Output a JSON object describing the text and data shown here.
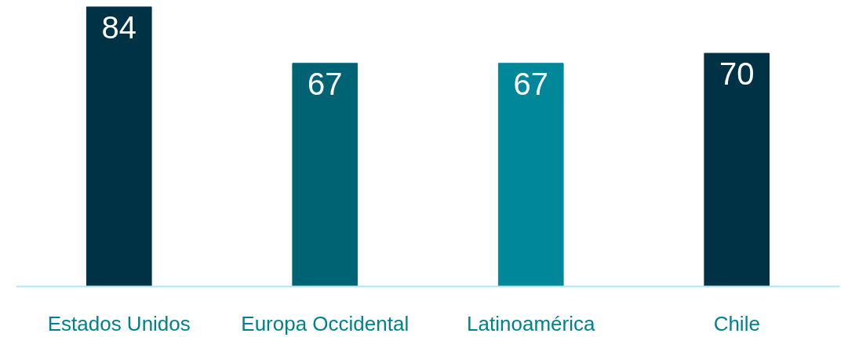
{
  "chart_data": {
    "type": "bar",
    "categories": [
      "Estados Unidos",
      "Europa Occidental",
      "Latinoamérica",
      "Chile"
    ],
    "values": [
      84,
      67,
      67,
      70
    ],
    "colors": [
      "#003246",
      "#006374",
      "#00879a",
      "#003246"
    ],
    "data_labels": true,
    "grid": false
  }
}
